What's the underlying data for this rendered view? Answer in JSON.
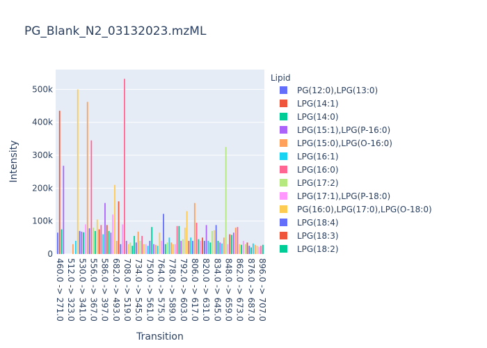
{
  "chart_data": {
    "type": "bar",
    "title": "PG_Blank_N2_03132023.mzML",
    "xlabel": "Transition",
    "ylabel": "Intensity",
    "ylim": [
      0,
      560000
    ],
    "yticks": [
      {
        "value": 0,
        "label": "0"
      },
      {
        "value": 100000,
        "label": "100k"
      },
      {
        "value": 200000,
        "label": "200k"
      },
      {
        "value": 300000,
        "label": "300k"
      },
      {
        "value": 400000,
        "label": "400k"
      },
      {
        "value": 500000,
        "label": "500k"
      }
    ],
    "xtick_labels": [
      "460.0 -> 271.0",
      "512.0 -> 323.0",
      "530.0 -> 341.0",
      "556.0 -> 367.0",
      "586.0 -> 397.0",
      "682.0 -> 493.0",
      "708.0 -> 519.0",
      "734.0 -> 545.0",
      "750.0 -> 561.0",
      "764.0 -> 575.0",
      "778.0 -> 589.0",
      "792.0 -> 603.0",
      "806.0 -> 617.0",
      "820.0 -> 631.0",
      "834.0 -> 645.0",
      "848.0 -> 659.0",
      "862.0 -> 673.0",
      "876.0 -> 687.0",
      "896.0 -> 707.0"
    ],
    "legend_title": "Lipid",
    "legend_position": "right",
    "grid": true,
    "series": [
      {
        "name": "PG(12:0),LPG(13:0)",
        "color": "#636efa"
      },
      {
        "name": "LPG(14:1)",
        "color": "#EF553B"
      },
      {
        "name": "LPG(14:0)",
        "color": "#00cc96"
      },
      {
        "name": "LPG(15:1),LPG(P-16:0)",
        "color": "#ab63fa"
      },
      {
        "name": "LPG(15:0),LPG(O-16:0)",
        "color": "#FFA15A"
      },
      {
        "name": "LPG(16:1)",
        "color": "#19d3f3"
      },
      {
        "name": "LPG(16:0)",
        "color": "#FF6692"
      },
      {
        "name": "LPG(17:2)",
        "color": "#B6E880"
      },
      {
        "name": "LPG(17:1),LPG(P-18:0)",
        "color": "#FF97FF"
      },
      {
        "name": "PG(16:0),LPG(17:0),LPG(O-18:0)",
        "color": "#FECB52"
      },
      {
        "name": "LPG(18:4)",
        "color": "#636efa"
      },
      {
        "name": "LPG(18:3)",
        "color": "#EF553B"
      },
      {
        "name": "LPG(18:2)",
        "color": "#00cc96"
      }
    ],
    "bars": [
      {
        "x": 0,
        "value": 65000,
        "series": 0
      },
      {
        "x": 0.7,
        "value": 435000,
        "series": 1
      },
      {
        "x": 1.4,
        "value": 75000,
        "series": 2
      },
      {
        "x": 2.1,
        "value": 268000,
        "series": 3
      },
      {
        "x": 5.5,
        "value": 30000,
        "series": 4
      },
      {
        "x": 6.5,
        "value": 40000,
        "series": 5
      },
      {
        "x": 7.2,
        "value": 500000,
        "series": 9
      },
      {
        "x": 7.9,
        "value": 70000,
        "series": 0
      },
      {
        "x": 8.6,
        "value": 68000,
        "series": 3
      },
      {
        "x": 9.3,
        "value": 66000,
        "series": 2
      },
      {
        "x": 10.0,
        "value": 90000,
        "series": 8
      },
      {
        "x": 10.7,
        "value": 462000,
        "series": 4
      },
      {
        "x": 11.4,
        "value": 78000,
        "series": 0
      },
      {
        "x": 12.1,
        "value": 345000,
        "series": 6
      },
      {
        "x": 12.8,
        "value": 80000,
        "series": 7
      },
      {
        "x": 13.5,
        "value": 70000,
        "series": 2
      },
      {
        "x": 14.2,
        "value": 105000,
        "series": 9
      },
      {
        "x": 14.9,
        "value": 75000,
        "series": 1
      },
      {
        "x": 15.6,
        "value": 88000,
        "series": 6
      },
      {
        "x": 16.3,
        "value": 60000,
        "series": 5
      },
      {
        "x": 17.0,
        "value": 155000,
        "series": 3
      },
      {
        "x": 17.7,
        "value": 88000,
        "series": 1
      },
      {
        "x": 18.4,
        "value": 70000,
        "series": 2
      },
      {
        "x": 19.1,
        "value": 65000,
        "series": 3
      },
      {
        "x": 19.8,
        "value": 120000,
        "series": 8
      },
      {
        "x": 20.5,
        "value": 210000,
        "series": 9
      },
      {
        "x": 21.2,
        "value": 40000,
        "series": 4
      },
      {
        "x": 21.9,
        "value": 160000,
        "series": 1
      },
      {
        "x": 22.6,
        "value": 30000,
        "series": 0
      },
      {
        "x": 23.3,
        "value": 90000,
        "series": 8
      },
      {
        "x": 24.0,
        "value": 532000,
        "series": 6
      },
      {
        "x": 24.7,
        "value": 40000,
        "series": 3
      },
      {
        "x": 25.4,
        "value": 30000,
        "series": 9
      },
      {
        "x": 26.1,
        "value": 35000,
        "series": 7
      },
      {
        "x": 26.8,
        "value": 25000,
        "series": 2
      },
      {
        "x": 27.5,
        "value": 55000,
        "series": 2
      },
      {
        "x": 28.2,
        "value": 35000,
        "series": 0
      },
      {
        "x": 28.9,
        "value": 68000,
        "series": 4
      },
      {
        "x": 29.6,
        "value": 40000,
        "series": 7
      },
      {
        "x": 30.3,
        "value": 55000,
        "series": 6
      },
      {
        "x": 31.0,
        "value": 30000,
        "series": 9
      },
      {
        "x": 31.7,
        "value": 30000,
        "series": 8
      },
      {
        "x": 32.4,
        "value": 25000,
        "series": 5
      },
      {
        "x": 33.1,
        "value": 40000,
        "series": 0
      },
      {
        "x": 33.8,
        "value": 82000,
        "series": 2
      },
      {
        "x": 34.5,
        "value": 30000,
        "series": 3
      },
      {
        "x": 35.2,
        "value": 28000,
        "series": 4
      },
      {
        "x": 35.9,
        "value": 25000,
        "series": 5
      },
      {
        "x": 36.6,
        "value": 65000,
        "series": 9
      },
      {
        "x": 37.3,
        "value": 40000,
        "series": 8
      },
      {
        "x": 38.0,
        "value": 122000,
        "series": 0
      },
      {
        "x": 38.7,
        "value": 30000,
        "series": 2
      },
      {
        "x": 39.4,
        "value": 35000,
        "series": 7
      },
      {
        "x": 40.1,
        "value": 50000,
        "series": 5
      },
      {
        "x": 40.8,
        "value": 35000,
        "series": 4
      },
      {
        "x": 41.5,
        "value": 30000,
        "series": 9
      },
      {
        "x": 42.2,
        "value": 30000,
        "series": 8
      },
      {
        "x": 42.9,
        "value": 85000,
        "series": 6
      },
      {
        "x": 43.6,
        "value": 85000,
        "series": 2
      },
      {
        "x": 44.3,
        "value": 40000,
        "series": 3
      },
      {
        "x": 45.0,
        "value": 45000,
        "series": 7
      },
      {
        "x": 45.7,
        "value": 80000,
        "series": 9
      },
      {
        "x": 46.4,
        "value": 130000,
        "series": 9
      },
      {
        "x": 47.1,
        "value": 40000,
        "series": 1
      },
      {
        "x": 47.8,
        "value": 50000,
        "series": 5
      },
      {
        "x": 48.5,
        "value": 40000,
        "series": 0
      },
      {
        "x": 49.2,
        "value": 155000,
        "series": 4
      },
      {
        "x": 49.9,
        "value": 95000,
        "series": 6
      },
      {
        "x": 50.6,
        "value": 45000,
        "series": 2
      },
      {
        "x": 51.3,
        "value": 40000,
        "series": 8
      },
      {
        "x": 52.0,
        "value": 50000,
        "series": 1
      },
      {
        "x": 52.7,
        "value": 40000,
        "series": 0
      },
      {
        "x": 53.4,
        "value": 88000,
        "series": 3
      },
      {
        "x": 54.1,
        "value": 40000,
        "series": 5
      },
      {
        "x": 54.8,
        "value": 35000,
        "series": 2
      },
      {
        "x": 55.5,
        "value": 70000,
        "series": 7
      },
      {
        "x": 56.2,
        "value": 72000,
        "series": 9
      },
      {
        "x": 56.9,
        "value": 88000,
        "series": 0
      },
      {
        "x": 57.6,
        "value": 40000,
        "series": 2
      },
      {
        "x": 58.3,
        "value": 35000,
        "series": 3
      },
      {
        "x": 59.0,
        "value": 32000,
        "series": 5
      },
      {
        "x": 59.7,
        "value": 50000,
        "series": 4
      },
      {
        "x": 60.4,
        "value": 325000,
        "series": 7
      },
      {
        "x": 61.1,
        "value": 30000,
        "series": 8
      },
      {
        "x": 61.8,
        "value": 60000,
        "series": 1
      },
      {
        "x": 62.5,
        "value": 58000,
        "series": 2
      },
      {
        "x": 63.2,
        "value": 65000,
        "series": 3
      },
      {
        "x": 63.9,
        "value": 80000,
        "series": 4
      },
      {
        "x": 64.6,
        "value": 82000,
        "series": 6
      },
      {
        "x": 65.3,
        "value": 30000,
        "series": 9
      },
      {
        "x": 66.0,
        "value": 28000,
        "series": 2
      },
      {
        "x": 66.7,
        "value": 40000,
        "series": 8
      },
      {
        "x": 67.4,
        "value": 30000,
        "series": 7
      },
      {
        "x": 68.1,
        "value": 35000,
        "series": 1
      },
      {
        "x": 68.8,
        "value": 25000,
        "series": 0
      },
      {
        "x": 69.5,
        "value": 20000,
        "series": 2
      },
      {
        "x": 70.2,
        "value": 32000,
        "series": 5
      },
      {
        "x": 70.9,
        "value": 28000,
        "series": 4
      },
      {
        "x": 71.6,
        "value": 25000,
        "series": 9
      },
      {
        "x": 72.3,
        "value": 22000,
        "series": 8
      },
      {
        "x": 73.0,
        "value": 25000,
        "series": 6
      },
      {
        "x": 73.7,
        "value": 28000,
        "series": 2
      }
    ]
  }
}
